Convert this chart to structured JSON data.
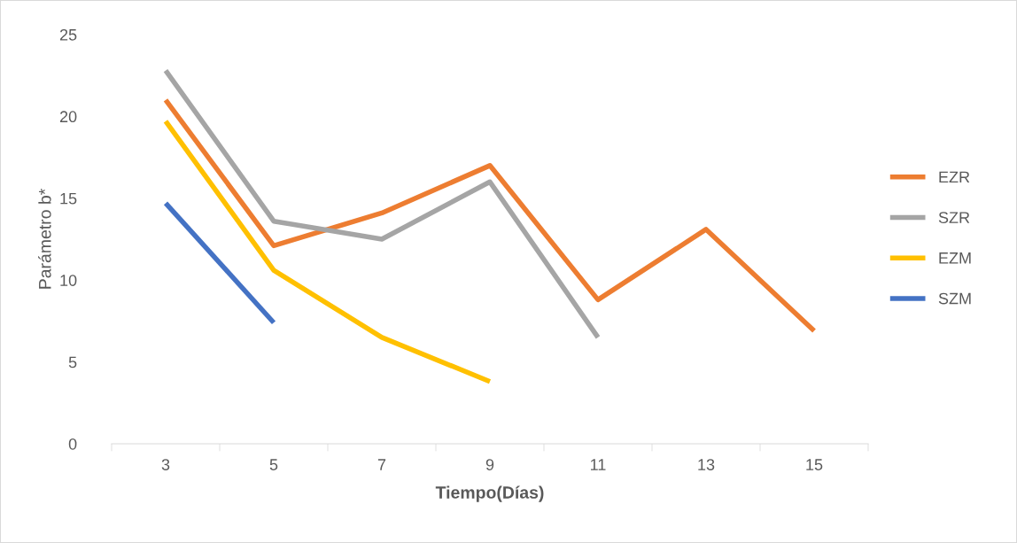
{
  "chart_data": {
    "type": "line",
    "xlabel": "Tiempo(Días)",
    "ylabel": "Parámetro b*",
    "categories": [
      "3",
      "5",
      "7",
      "9",
      "11",
      "13",
      "15"
    ],
    "series": [
      {
        "name": "EZR",
        "color": "#ed7d31",
        "values": [
          21.0,
          12.1,
          14.1,
          17.0,
          8.8,
          13.1,
          6.9
        ]
      },
      {
        "name": "SZR",
        "color": "#a5a5a5",
        "values": [
          22.8,
          13.6,
          12.5,
          16.0,
          6.5,
          null,
          null
        ]
      },
      {
        "name": "EZM",
        "color": "#ffc000",
        "values": [
          19.7,
          10.6,
          6.5,
          3.8,
          null,
          null,
          null
        ]
      },
      {
        "name": "SZM",
        "color": "#4472c4",
        "values": [
          14.7,
          7.4,
          null,
          null,
          null,
          null,
          null
        ]
      }
    ],
    "ylim": [
      0,
      25
    ],
    "yticks": [
      0,
      5,
      10,
      15,
      20,
      25
    ],
    "grid": false,
    "legend": "right",
    "marker": "none",
    "line_style": "solid"
  }
}
